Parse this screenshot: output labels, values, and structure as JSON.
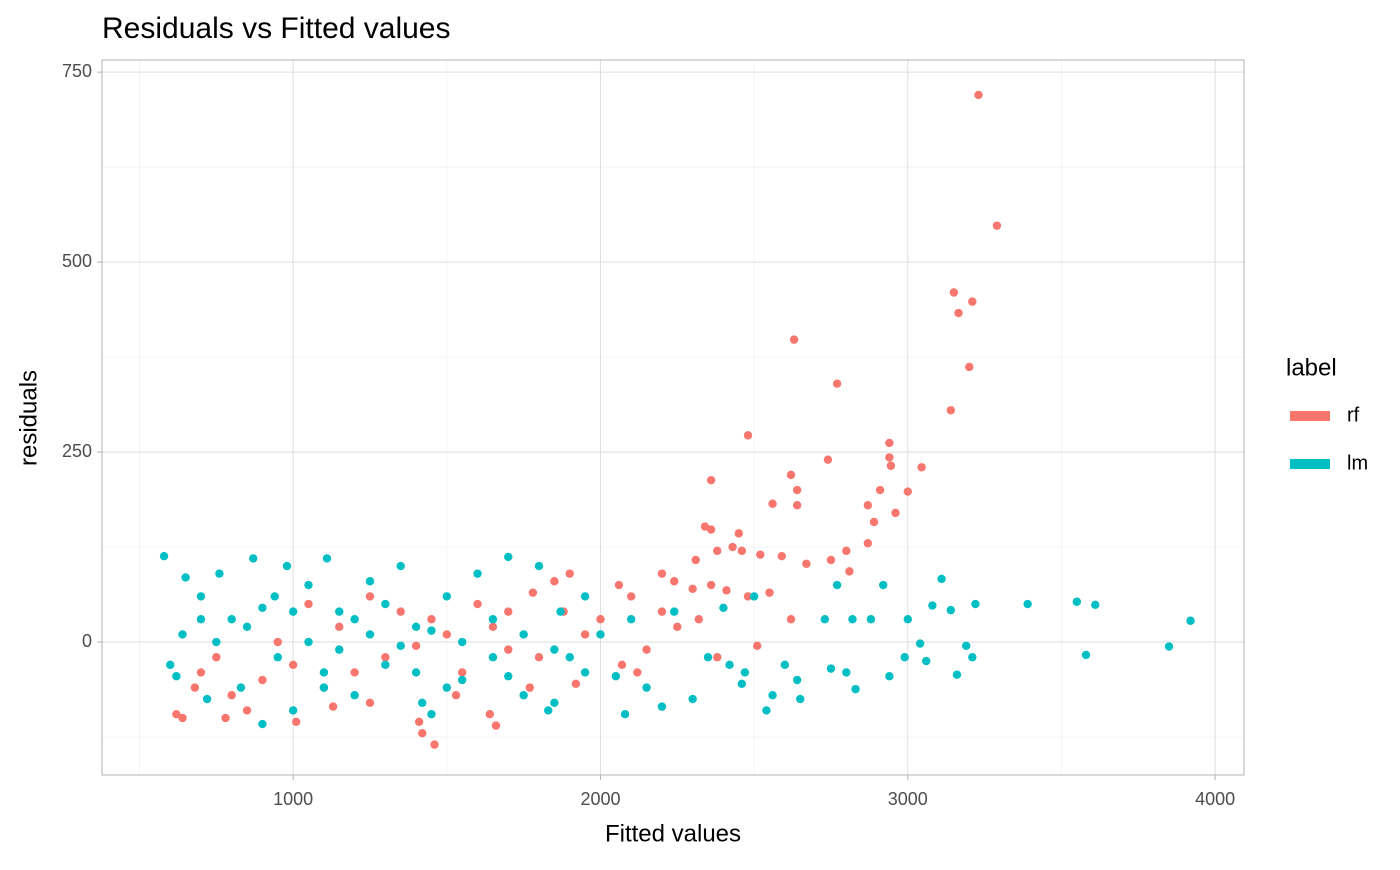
{
  "chart_data": {
    "type": "scatter",
    "title": "Residuals vs Fitted values",
    "xlabel": "Fitted values",
    "ylabel": "residuals",
    "legend_title": "label",
    "legend_position": "right",
    "xlim": [
      378,
      4094
    ],
    "ylim": [
      -175,
      766
    ],
    "xticks": [
      1000,
      2000,
      3000,
      4000
    ],
    "yticks": [
      0,
      250,
      500,
      750
    ],
    "xminor": [
      500,
      1500,
      2500,
      3500
    ],
    "yminor": [
      -125,
      125,
      375,
      625
    ],
    "grid": true,
    "series": [
      {
        "name": "rf",
        "color": "#F8766D",
        "x": [
          3230,
          3290,
          2630,
          3150,
          3210,
          3165,
          3200,
          2770,
          3140,
          2480,
          2940,
          2940,
          2945,
          3045,
          2740,
          2620,
          2360,
          2640,
          2910,
          3000,
          2640,
          2560,
          2870,
          2960,
          2890,
          2340,
          2360,
          2450,
          2870,
          2430,
          2460,
          2800,
          2380,
          2310,
          2750,
          2670,
          2810,
          2520,
          2590,
          2200,
          2240,
          2300,
          2360,
          2410,
          2480,
          2550,
          2620,
          2510,
          2380,
          2200,
          2100,
          2060,
          1900,
          1850,
          1780,
          1700,
          1650,
          1500,
          1400,
          1300,
          1200,
          1100,
          1000,
          900,
          800,
          700,
          640,
          620,
          780,
          850,
          1010,
          1130,
          1250,
          1410,
          1420,
          1460,
          1530,
          1640,
          1660,
          1770,
          1920,
          2070,
          2150,
          2250,
          2000,
          1950,
          1800,
          1600,
          1450,
          1350,
          1150,
          950,
          750,
          680,
          1050,
          1250,
          1550,
          1700,
          1880,
          2120,
          2320
        ],
        "y": [
          720,
          548,
          398,
          460,
          448,
          433,
          362,
          340,
          305,
          272,
          262,
          243,
          232,
          230,
          240,
          220,
          213,
          200,
          200,
          198,
          180,
          182,
          180,
          170,
          158,
          152,
          148,
          143,
          130,
          125,
          120,
          120,
          120,
          108,
          108,
          103,
          93,
          115,
          113,
          90,
          80,
          70,
          75,
          68,
          60,
          65,
          30,
          -5,
          -20,
          40,
          60,
          75,
          90,
          80,
          65,
          40,
          20,
          10,
          -5,
          -20,
          -40,
          -60,
          -30,
          -50,
          -70,
          -40,
          -100,
          -95,
          -100,
          -90,
          -105,
          -85,
          -80,
          -105,
          -120,
          -135,
          -70,
          -95,
          -110,
          -60,
          -55,
          -30,
          -10,
          20,
          30,
          10,
          -20,
          50,
          30,
          40,
          20,
          0,
          -20,
          -60,
          50,
          60,
          -40,
          -10,
          40,
          -40,
          30
        ]
      },
      {
        "name": "lm",
        "color": "#00BFC4",
        "x": [
          580,
          600,
          620,
          640,
          650,
          700,
          720,
          760,
          800,
          830,
          870,
          900,
          940,
          980,
          1000,
          1050,
          1100,
          1110,
          1150,
          1200,
          1250,
          1300,
          1350,
          1400,
          1420,
          1450,
          1500,
          1550,
          1600,
          1650,
          1700,
          1750,
          1800,
          1830,
          1850,
          1870,
          1900,
          1950,
          2000,
          2050,
          2080,
          2100,
          2150,
          2200,
          2240,
          2300,
          2350,
          2400,
          2420,
          2460,
          2470,
          2500,
          2540,
          2560,
          2600,
          2640,
          2650,
          2730,
          2750,
          2770,
          2800,
          2820,
          2830,
          2880,
          2920,
          2940,
          2990,
          3000,
          3040,
          3060,
          3080,
          3110,
          3140,
          3160,
          3190,
          3210,
          3220,
          3390,
          3550,
          3580,
          3610,
          3850,
          3920,
          750,
          850,
          950,
          1050,
          1150,
          1250,
          1350,
          1450,
          1550,
          1650,
          1750,
          1850,
          1950,
          700,
          900,
          1100,
          1300,
          1500,
          1700,
          1200,
          1400,
          1000
        ],
        "y": [
          113,
          -30,
          -45,
          10,
          85,
          60,
          -75,
          90,
          30,
          -60,
          110,
          -108,
          60,
          100,
          -90,
          75,
          -40,
          110,
          40,
          -70,
          80,
          -30,
          100,
          20,
          -80,
          -95,
          60,
          -50,
          90,
          -20,
          112,
          -70,
          100,
          -90,
          -80,
          40,
          -20,
          60,
          10,
          -45,
          -95,
          30,
          -60,
          -85,
          40,
          -75,
          -20,
          45,
          -30,
          -55,
          -40,
          60,
          -90,
          -70,
          -30,
          -50,
          -75,
          30,
          -35,
          75,
          -40,
          30,
          -62,
          30,
          75,
          -45,
          -20,
          30,
          -2,
          -25,
          48,
          83,
          42,
          -43,
          -5,
          -20,
          50,
          50,
          53,
          -17,
          49,
          -6,
          28,
          0,
          20,
          -20,
          0,
          -10,
          10,
          -5,
          15,
          0,
          30,
          10,
          -10,
          -40,
          30,
          45,
          -60,
          50,
          -60,
          -45,
          30,
          -40,
          40
        ]
      }
    ]
  }
}
